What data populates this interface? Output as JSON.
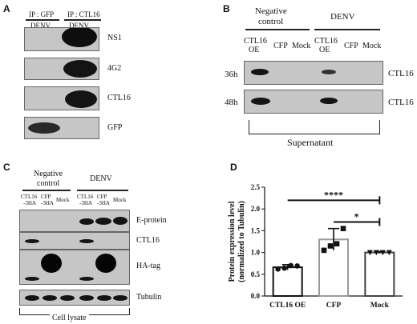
{
  "panels": {
    "A": {
      "label": "A",
      "ip_gfp": "IP : GFP",
      "ip_ctl16": "IP : CTL16",
      "lane_gfp": "DENV",
      "lane_ctl16": "DENV",
      "rows": [
        "NS1",
        "4G2",
        "CTL16",
        "GFP"
      ]
    },
    "B": {
      "label": "B",
      "group_neg": "Negative\ncontrol",
      "group_neg_line1": "Negative",
      "group_neg_line2": "control",
      "group_denv": "DENV",
      "lanes": [
        "CTL16 OE",
        "CFP",
        "Mock",
        "CTL16 OE",
        "CFP",
        "Mock"
      ],
      "lane_ctl16_line1": "CTL16",
      "lane_ctl16_line2": "OE",
      "times": [
        "36h",
        "48h"
      ],
      "row_label": "CTL16",
      "bottom_label": "Supernatant"
    },
    "C": {
      "label": "C",
      "group_neg_line1": "Negative",
      "group_neg_line2": "control",
      "group_denv": "DENV",
      "lane_ctl16": [
        "CTL16",
        "-3HA"
      ],
      "lane_cfp": [
        "CFP",
        "-3HA"
      ],
      "lane_mock": "Mock",
      "rows": [
        "E-protein",
        "CTL16",
        "HA-tag",
        "Tubulin"
      ],
      "bottom_label": "Cell lysate"
    },
    "D": {
      "label": "D",
      "sig_top": "****",
      "sig_bottom": "*"
    }
  },
  "chart_data": {
    "type": "bar",
    "categories": [
      "CTL16 OE",
      "CFP",
      "Mock"
    ],
    "values": [
      0.66,
      1.3,
      1.0
    ],
    "error": [
      0.06,
      0.25,
      0.02
    ],
    "points": [
      [
        0.62,
        0.64,
        0.7,
        0.69
      ],
      [
        1.05,
        1.15,
        1.2,
        1.55
      ],
      [
        1.0,
        1.0,
        1.0,
        1.0
      ]
    ],
    "ylabel": "Protein expression level\n(normalized to Tubulin)",
    "ylabel_line1": "Protein expression level",
    "ylabel_line2": "(normalized to Tubulin)",
    "ylim": [
      0.0,
      2.5
    ],
    "yticks": [
      "0.0",
      "0.5",
      "1.0",
      "1.5",
      "2.0",
      "2.5"
    ],
    "colors": {
      "CTL16 OE": "#111111",
      "CFP": "#9a9a9a",
      "Mock": "#444444"
    },
    "grid": false
  }
}
